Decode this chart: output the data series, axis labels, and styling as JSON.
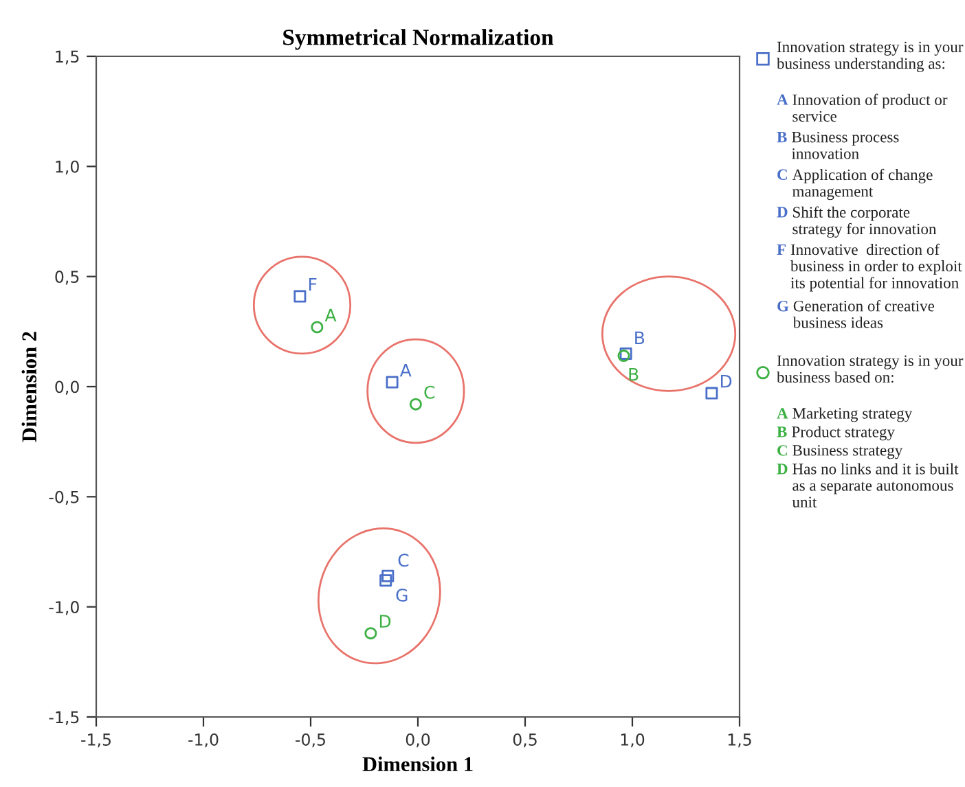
{
  "chart_data": {
    "type": "scatter",
    "title": "Symmetrical Normalization",
    "xlabel": "Dimension 1",
    "ylabel": "Dimension 2",
    "xlim": [
      -1.5,
      1.5
    ],
    "ylim": [
      -1.5,
      1.5
    ],
    "xticks": [
      {
        "value": -1.5,
        "label": "-1,5"
      },
      {
        "value": -1.0,
        "label": "-1,0"
      },
      {
        "value": -0.5,
        "label": "-0,5"
      },
      {
        "value": 0.0,
        "label": "0,0"
      },
      {
        "value": 0.5,
        "label": "0,5"
      },
      {
        "value": 1.0,
        "label": "1,0"
      },
      {
        "value": 1.5,
        "label": "1,5"
      }
    ],
    "yticks": [
      {
        "value": -1.5,
        "label": "-1,5"
      },
      {
        "value": -1.0,
        "label": "-1,0"
      },
      {
        "value": -0.5,
        "label": "-0,5"
      },
      {
        "value": 0.0,
        "label": "0,0"
      },
      {
        "value": 0.5,
        "label": "0,5"
      },
      {
        "value": 1.0,
        "label": "1,0"
      },
      {
        "value": 1.5,
        "label": "1,5"
      }
    ],
    "grid": false,
    "legend": "right",
    "series": [
      {
        "name": "Innovation strategy is in your business understanding as:",
        "color": "#4a6fc9",
        "marker": "square",
        "x": [
          -0.12,
          0.97,
          -0.14,
          1.37,
          -0.55,
          -0.15
        ],
        "values": [
          0.02,
          0.15,
          -0.86,
          -0.03,
          0.41,
          -0.88
        ],
        "value_labels": [
          "A",
          "B",
          "C",
          "D",
          "F",
          "G"
        ]
      },
      {
        "name": "Innovation strategy is in your business based on:",
        "color": "#3cb043",
        "marker": "circle",
        "x": [
          -0.47,
          0.96,
          -0.01,
          -0.22
        ],
        "values": [
          0.27,
          0.14,
          -0.08,
          -1.12
        ],
        "value_labels": [
          "A",
          "B",
          "C",
          "D"
        ]
      }
    ],
    "annotations": [
      "A Innovation of product or service",
      "B Business process innovation",
      "C Application of change management",
      "D Shift the corporate strategy for innovation",
      "F Innovative  direction of business in order to exploit its potential for innovation",
      "G Generation of creative business ideas",
      "A Marketing strategy",
      "B Product strategy",
      "C Business strategy",
      "D Has no links and it is built as a separate autonomous unit"
    ]
  }
}
